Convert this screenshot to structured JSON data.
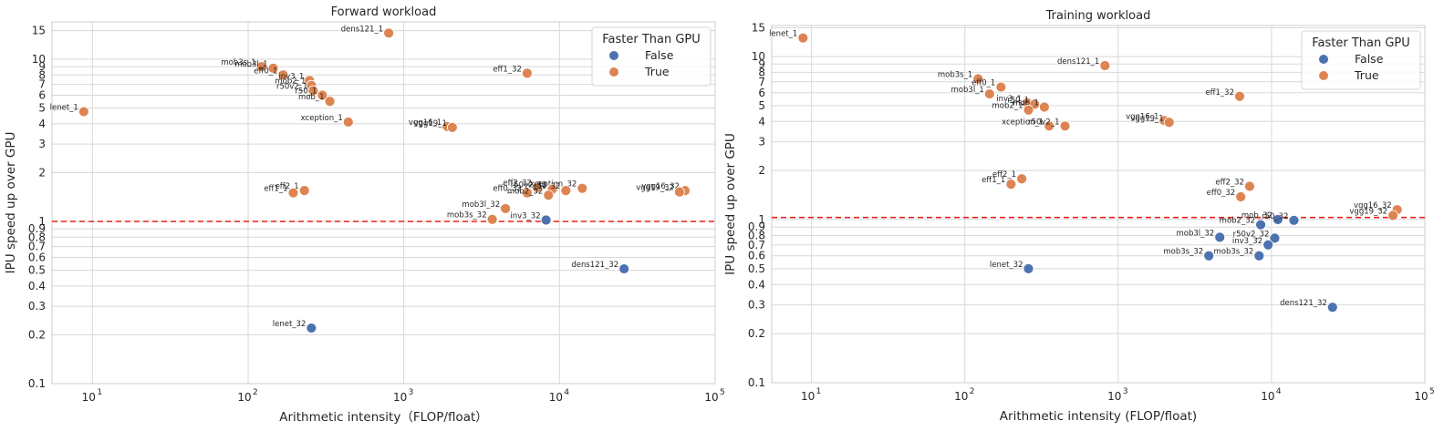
{
  "colors": {
    "false": "#4c72b0",
    "true": "#dd8452",
    "baseline": "#e8201a"
  },
  "chart_data": [
    {
      "type": "scatter",
      "title": "Forward workload",
      "xlabel": "Arithmetic intensity（FLOP/float）",
      "ylabel": "IPU speed up over GPU",
      "xscale": "log",
      "yscale": "log",
      "xlim": [
        5.5,
        100000
      ],
      "ylim": [
        0.1,
        17
      ],
      "xticks": [
        {
          "base": "10",
          "exp": "1",
          "value": 10
        },
        {
          "base": "10",
          "exp": "2",
          "value": 100
        },
        {
          "base": "10",
          "exp": "3",
          "value": 1000
        },
        {
          "base": "10",
          "exp": "4",
          "value": 10000
        },
        {
          "base": "10",
          "exp": "5",
          "value": 100000
        }
      ],
      "yticks": [
        0.1,
        0.2,
        0.3,
        0.4,
        0.5,
        0.6,
        0.7,
        0.8,
        0.9,
        1,
        2,
        3,
        4,
        5,
        6,
        7,
        8,
        9,
        10,
        15
      ],
      "baseline_y": 1,
      "grid": true,
      "legend": {
        "title": "Faster Than GPU",
        "position": "top-right",
        "entries": [
          "False",
          "True"
        ]
      },
      "points": [
        {
          "label": "dens121_1",
          "x": 800,
          "y": 14.5,
          "faster": true
        },
        {
          "label": "mob3s_1",
          "x": 122,
          "y": 9.0,
          "faster": true
        },
        {
          "label": "mob3l_1",
          "x": 145,
          "y": 8.8,
          "faster": true
        },
        {
          "label": "eff0_1",
          "x": 168,
          "y": 8.0,
          "faster": true
        },
        {
          "label": "inv3_1",
          "x": 248,
          "y": 7.4,
          "faster": true
        },
        {
          "label": "mob2_1",
          "x": 255,
          "y": 6.9,
          "faster": true
        },
        {
          "label": "r50v2_1",
          "x": 262,
          "y": 6.4,
          "faster": true
        },
        {
          "label": "r50_1",
          "x": 300,
          "y": 6.0,
          "faster": true
        },
        {
          "label": "mob_1",
          "x": 335,
          "y": 5.5,
          "faster": true
        },
        {
          "label": "xception_1",
          "x": 440,
          "y": 4.1,
          "faster": true
        },
        {
          "label": "lenet_1",
          "x": 8.8,
          "y": 4.75,
          "faster": true
        },
        {
          "label": "eff1_32",
          "x": 6200,
          "y": 8.2,
          "faster": true
        },
        {
          "label": "vgg16_1",
          "x": 1900,
          "y": 3.85,
          "faster": true
        },
        {
          "label": "vgg19_1",
          "x": 2050,
          "y": 3.8,
          "faster": true
        },
        {
          "label": "eff2_1",
          "x": 230,
          "y": 1.55,
          "faster": true
        },
        {
          "label": "eff1_1",
          "x": 195,
          "y": 1.5,
          "faster": true
        },
        {
          "label": "eff2_32",
          "x": 7200,
          "y": 1.62,
          "faster": true
        },
        {
          "label": "xception_32",
          "x": 14000,
          "y": 1.6,
          "faster": true
        },
        {
          "label": "r50v2_32",
          "x": 9000,
          "y": 1.58,
          "faster": true
        },
        {
          "label": "r50_32",
          "x": 11000,
          "y": 1.55,
          "faster": true
        },
        {
          "label": "eff0_32",
          "x": 6200,
          "y": 1.5,
          "faster": true
        },
        {
          "label": "mob2_32",
          "x": 8500,
          "y": 1.45,
          "faster": true
        },
        {
          "label": "vgg16_32",
          "x": 64000,
          "y": 1.55,
          "faster": true
        },
        {
          "label": "vgg19_32",
          "x": 59000,
          "y": 1.52,
          "faster": true
        },
        {
          "label": "mob3l_32",
          "x": 4500,
          "y": 1.2,
          "faster": true
        },
        {
          "label": "mob3s_32",
          "x": 3700,
          "y": 1.03,
          "faster": true
        },
        {
          "label": "inv3_32",
          "x": 8200,
          "y": 1.02,
          "faster": false
        },
        {
          "label": "dens121_32",
          "x": 26000,
          "y": 0.51,
          "faster": false
        },
        {
          "label": "lenet_32",
          "x": 255,
          "y": 0.22,
          "faster": false
        }
      ]
    },
    {
      "type": "scatter",
      "title": "Training workload",
      "xlabel": "Arithmetic intensity (FLOP/float)",
      "ylabel": "IPU speed up over GPU",
      "xscale": "log",
      "yscale": "log",
      "xlim": [
        5.5,
        100000
      ],
      "ylim": [
        0.1,
        15.5
      ],
      "xticks": [
        {
          "base": "10",
          "exp": "1",
          "value": 10
        },
        {
          "base": "10",
          "exp": "2",
          "value": 100
        },
        {
          "base": "10",
          "exp": "3",
          "value": 1000
        },
        {
          "base": "10",
          "exp": "4",
          "value": 10000
        },
        {
          "base": "10",
          "exp": "5",
          "value": 100000
        }
      ],
      "yticks": [
        0.1,
        0.2,
        0.3,
        0.4,
        0.5,
        0.6,
        0.7,
        0.8,
        0.9,
        1,
        2,
        3,
        4,
        5,
        6,
        7,
        8,
        9,
        10,
        15
      ],
      "baseline_y": 1.03,
      "grid": true,
      "legend": {
        "title": "Faster Than GPU",
        "position": "top-right",
        "entries": [
          "False",
          "True"
        ]
      },
      "points": [
        {
          "label": "lenet_1",
          "x": 8.8,
          "y": 13.0,
          "faster": true
        },
        {
          "label": "dens121_1",
          "x": 820,
          "y": 8.8,
          "faster": true
        },
        {
          "label": "mob3s_1",
          "x": 122,
          "y": 7.3,
          "faster": true
        },
        {
          "label": "eff0_1",
          "x": 172,
          "y": 6.5,
          "faster": true
        },
        {
          "label": "mob3l_1",
          "x": 145,
          "y": 5.9,
          "faster": true
        },
        {
          "label": "inv3_1",
          "x": 255,
          "y": 5.2,
          "faster": true
        },
        {
          "label": "r50_1",
          "x": 285,
          "y": 5.1,
          "faster": true
        },
        {
          "label": "mob_1",
          "x": 330,
          "y": 4.9,
          "faster": true
        },
        {
          "label": "mob2_1",
          "x": 260,
          "y": 4.7,
          "faster": true
        },
        {
          "label": "eff1_32",
          "x": 6200,
          "y": 5.7,
          "faster": true
        },
        {
          "label": "vgg16_1",
          "x": 2000,
          "y": 4.05,
          "faster": true
        },
        {
          "label": "vgg19_1",
          "x": 2150,
          "y": 3.95,
          "faster": true
        },
        {
          "label": "xception_1",
          "x": 355,
          "y": 3.75,
          "faster": true
        },
        {
          "label": "r50v2_1",
          "x": 450,
          "y": 3.75,
          "faster": true
        },
        {
          "label": "eff2_1",
          "x": 235,
          "y": 1.78,
          "faster": true
        },
        {
          "label": "eff1_1",
          "x": 200,
          "y": 1.65,
          "faster": true
        },
        {
          "label": "eff2_32",
          "x": 7200,
          "y": 1.6,
          "faster": true
        },
        {
          "label": "eff0_32",
          "x": 6300,
          "y": 1.38,
          "faster": true
        },
        {
          "label": "vgg16_32",
          "x": 66000,
          "y": 1.15,
          "faster": true
        },
        {
          "label": "vgg19_32",
          "x": 62000,
          "y": 1.06,
          "faster": true
        },
        {
          "label": "mob_32",
          "x": 11000,
          "y": 1.0,
          "faster": false
        },
        {
          "label": "mob2_32",
          "x": 8500,
          "y": 0.93,
          "faster": false
        },
        {
          "label": "r50_32",
          "x": 14000,
          "y": 0.99,
          "faster": false
        },
        {
          "label": "mob3l_32",
          "x": 4600,
          "y": 0.78,
          "faster": false
        },
        {
          "label": "r50v2_32",
          "x": 10500,
          "y": 0.77,
          "faster": false
        },
        {
          "label": "inv3_32",
          "x": 9500,
          "y": 0.7,
          "faster": false
        },
        {
          "label": "mob3s_32",
          "x": 3900,
          "y": 0.6,
          "faster": false
        },
        {
          "label": "mob3s_32b",
          "x": 8300,
          "y": 0.6,
          "faster": false
        },
        {
          "label": "lenet_32",
          "x": 260,
          "y": 0.5,
          "faster": false
        },
        {
          "label": "dens121_32",
          "x": 25000,
          "y": 0.29,
          "faster": false
        }
      ]
    }
  ]
}
